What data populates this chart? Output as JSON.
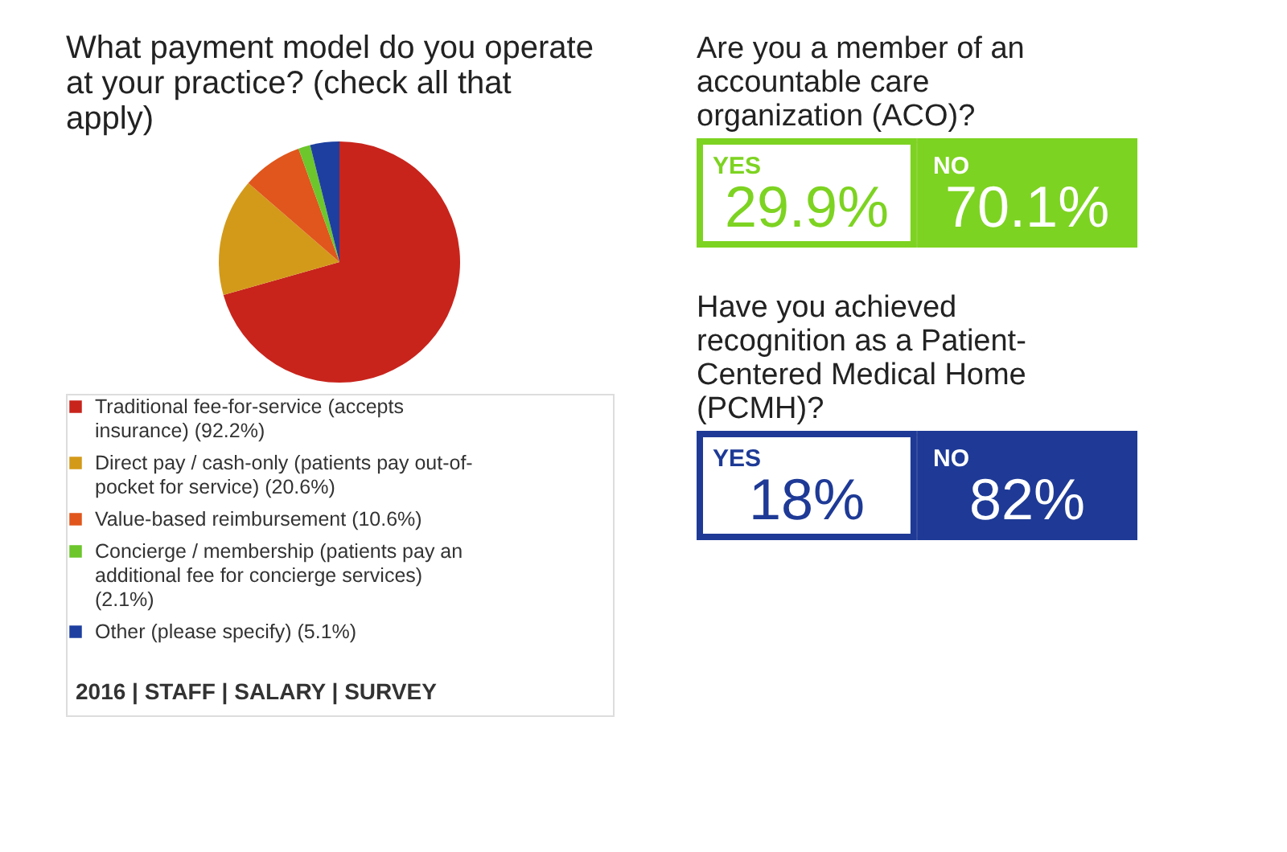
{
  "chart_data": [
    {
      "type": "pie",
      "title": "What payment model do you operate at your practice? (check all that apply)",
      "categories": [
        "Traditional fee-for-service (accepts insurance)",
        "Direct pay / cash-only (patients pay out-of-pocket for service)",
        "Value-based reimbursement",
        "Concierge / membership (patients pay an additional fee for concierge services)",
        "Other (please specify)"
      ],
      "values": [
        92.2,
        20.6,
        10.6,
        2.1,
        5.1
      ],
      "value_labels": [
        "(92.2%)",
        "(20.6%)",
        "(10.6%)",
        "(2.1%)",
        "(5.1%)"
      ],
      "colors": [
        "#c8241c",
        "#d39a1a",
        "#e0561c",
        "#6cc62c",
        "#1e3fa0"
      ],
      "legend": "bottom",
      "annotations": [
        "2016 | STAFF | SALARY | SURVEY"
      ]
    },
    {
      "type": "other",
      "title": "Are you a member of an accountable care organization (ACO)?",
      "categories": [
        "YES",
        "NO"
      ],
      "values": [
        29.9,
        70.1
      ],
      "value_labels": [
        "29.9%",
        "70.1%"
      ],
      "color": "#7dd321"
    },
    {
      "type": "other",
      "title": "Have you achieved recognition as a Patient-Centered Medical Home (PCMH)?",
      "categories": [
        "YES",
        "NO"
      ],
      "values": [
        18,
        82
      ],
      "value_labels": [
        "18%",
        "82%"
      ],
      "color": "#1e3a96"
    }
  ]
}
